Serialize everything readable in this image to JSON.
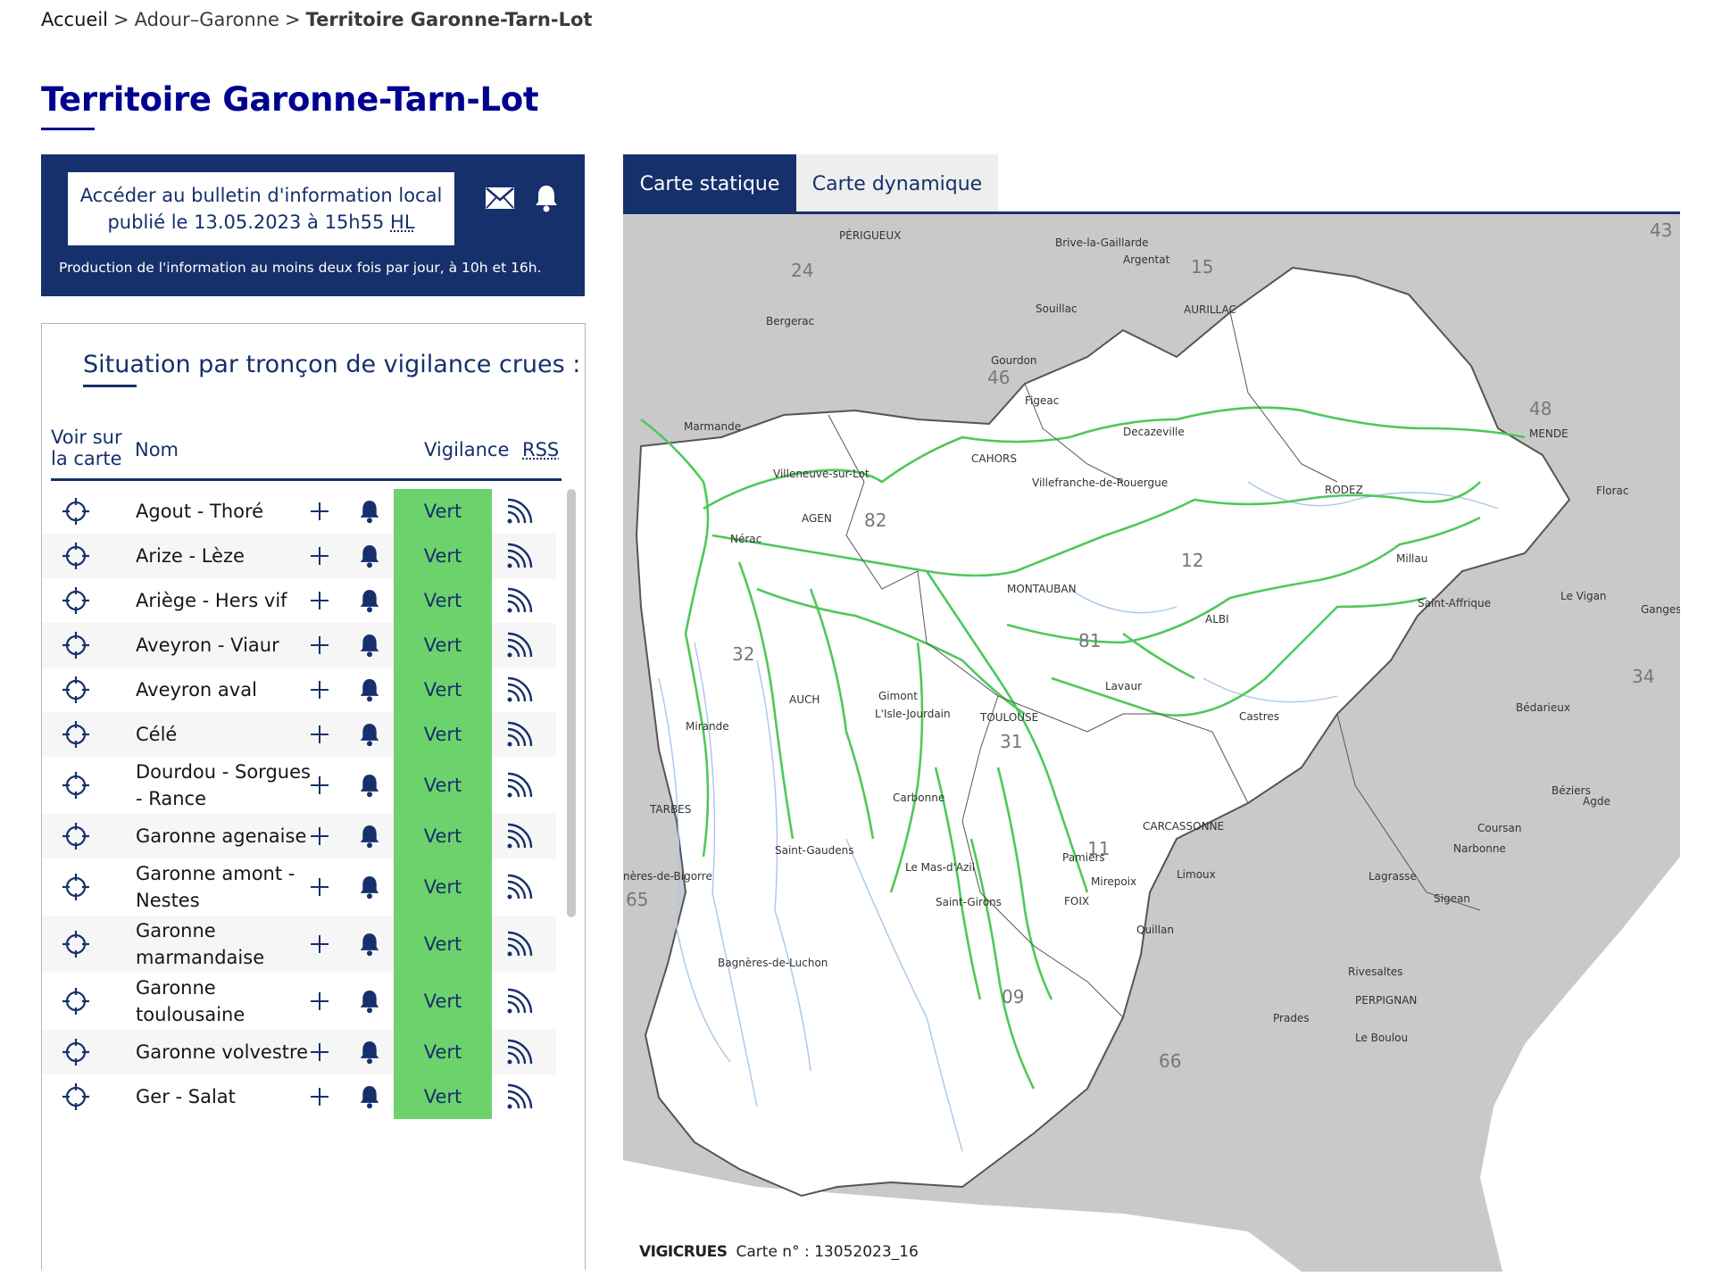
{
  "breadcrumb": {
    "home": "Accueil",
    "parent": "Adour–Garonne",
    "current": "Territoire Garonne-Tarn-Lot",
    "separator": ">"
  },
  "page_title": "Territoire Garonne-Tarn-Lot",
  "bulletin": {
    "line1": "Accéder au bulletin d'information local",
    "line2_prefix": "publié le 13.05.2023 à 15h55",
    "line2_abbr": "HL",
    "note": "Production de l'information au moins deux fois par jour, à 10h et 16h.",
    "icons": [
      "mail-icon",
      "bell-icon"
    ]
  },
  "situation": {
    "title": "Situation par tronçon de vigilance crues :",
    "headers": {
      "voir_line1": "Voir sur",
      "voir_line2": "la carte",
      "nom": "Nom",
      "vigilance": "Vigilance",
      "rss": "RSS"
    },
    "level_color": "#6cd26b",
    "rows": [
      {
        "name": "Agout - Thoré",
        "vigilance": "Vert"
      },
      {
        "name": "Arize - Lèze",
        "vigilance": "Vert"
      },
      {
        "name": "Ariège - Hers vif",
        "vigilance": "Vert"
      },
      {
        "name": "Aveyron - Viaur",
        "vigilance": "Vert"
      },
      {
        "name": "Aveyron aval",
        "vigilance": "Vert"
      },
      {
        "name": "Célé",
        "vigilance": "Vert"
      },
      {
        "name": "Dourdou - Sorgues - Rance",
        "vigilance": "Vert"
      },
      {
        "name": "Garonne agenaise",
        "vigilance": "Vert"
      },
      {
        "name": "Garonne amont - Nestes",
        "vigilance": "Vert"
      },
      {
        "name": "Garonne marmandaise",
        "vigilance": "Vert"
      },
      {
        "name": "Garonne toulousaine",
        "vigilance": "Vert"
      },
      {
        "name": "Garonne volvestre",
        "vigilance": "Vert"
      },
      {
        "name": "Ger - Salat",
        "vigilance": "Vert"
      }
    ]
  },
  "map": {
    "tabs": [
      "Carte statique",
      "Carte dynamique"
    ],
    "active_tab": "Carte statique",
    "credit_brand": "VIGICRUES",
    "credit_text": "Carte n° : 13052023_16",
    "departments": [
      "24",
      "15",
      "43",
      "46",
      "48",
      "82",
      "12",
      "32",
      "81",
      "34",
      "31",
      "11",
      "65",
      "09",
      "66"
    ],
    "towns_in": [
      "Marmande",
      "Villeneuve-sur-Lot",
      "AGEN",
      "Nérac",
      "CAHORS",
      "Figeac",
      "Decazeville",
      "Villefranche-de-Rouergue",
      "RODEZ",
      "MENDE",
      "Florac",
      "MONTAUBAN",
      "Millau",
      "Saint-Affrique",
      "ALBI",
      "AUCH",
      "Gimont",
      "L'Isle-Jourdain",
      "TOULOUSE",
      "Lavaur",
      "Castres",
      "Mirande",
      "Carbonne",
      "Saint-Gaudens",
      "Le Mas-d'Azil",
      "Saint-Girons",
      "Pamiers",
      "Mirepoix",
      "FOIX",
      "Bagnères-de-Luchon",
      "Le Vigan"
    ],
    "towns_out": [
      "PÉRIGUEUX",
      "Brive-la-Gaillarde",
      "Argentat",
      "Bergerac",
      "Souillac",
      "AURILLAC",
      "Gourdon",
      "TARBES",
      "nères-de-Bigorre",
      "Bédarieux",
      "Béziers",
      "Agde",
      "Coursan",
      "Narbonne",
      "CARCASSONNE",
      "Limoux",
      "Lagrasse",
      "Sigean",
      "Quillan",
      "Rivesaltes",
      "PERPIGNAN",
      "Prades",
      "Le Boulou",
      "Ganges"
    ]
  }
}
